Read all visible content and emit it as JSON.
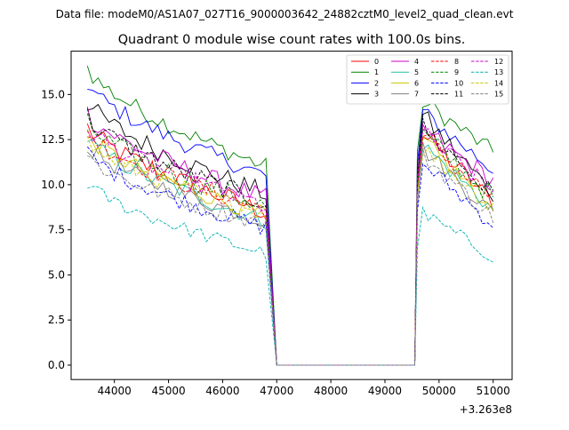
{
  "chart_data": {
    "type": "line",
    "suptitle": "Data file: modeM0/AS1A07_027T16_9000003642_24882cztM0_level2_quad_clean.evt",
    "title": "Quadrant 0 module wise count rates with 100.0s bins.",
    "xlabel": "",
    "ylabel": "",
    "x_offset_label": "+3.263e8",
    "xlim": [
      43200,
      51350
    ],
    "ylim": [
      -0.8,
      17.4
    ],
    "xticks": [
      44000,
      45000,
      46000,
      47000,
      48000,
      49000,
      50000,
      51000
    ],
    "yticks": [
      0.0,
      2.5,
      5.0,
      7.5,
      10.0,
      12.5,
      15.0
    ],
    "ytick_labels": [
      "0.0",
      "2.5",
      "5.0",
      "7.5",
      "10.0",
      "12.5",
      "15.0"
    ],
    "legend_position": "top-right",
    "gap": {
      "start": 47000,
      "end": 49550
    },
    "segment1": {
      "start": 43500,
      "end": 46800
    },
    "segment2": {
      "start": 49700,
      "end": 51000
    },
    "series": [
      {
        "name": "0",
        "color": "#ff0000",
        "dash": "solid",
        "start1": 13.2,
        "end1": 8.5,
        "start2": 12.8,
        "end2": 9.0,
        "noise": 0.6
      },
      {
        "name": "1",
        "color": "#008000",
        "dash": "solid",
        "start1": 16.5,
        "end1": 11.0,
        "start2": 14.6,
        "end2": 11.8,
        "noise": 0.5
      },
      {
        "name": "2",
        "color": "#0000ff",
        "dash": "solid",
        "start1": 15.6,
        "end1": 10.5,
        "start2": 14.0,
        "end2": 10.8,
        "noise": 0.5
      },
      {
        "name": "3",
        "color": "#000000",
        "dash": "solid",
        "start1": 14.6,
        "end1": 9.5,
        "start2": 13.8,
        "end2": 9.5,
        "noise": 0.6
      },
      {
        "name": "4",
        "color": "#cc00cc",
        "dash": "solid",
        "start1": 14.0,
        "end1": 9.2,
        "start2": 13.0,
        "end2": 10.2,
        "noise": 0.6
      },
      {
        "name": "5",
        "color": "#20c0a0",
        "dash": "solid",
        "start1": 12.6,
        "end1": 8.0,
        "start2": 12.2,
        "end2": 8.6,
        "noise": 0.5
      },
      {
        "name": "6",
        "color": "#c8c800",
        "dash": "solid",
        "start1": 12.8,
        "end1": 8.3,
        "start2": 12.4,
        "end2": 8.8,
        "noise": 0.5
      },
      {
        "name": "7",
        "color": "#808080",
        "dash": "solid",
        "start1": 12.2,
        "end1": 8.0,
        "start2": 12.0,
        "end2": 8.4,
        "noise": 0.5
      },
      {
        "name": "8",
        "color": "#ff0000",
        "dash": "dashed",
        "start1": 13.0,
        "end1": 8.6,
        "start2": 12.6,
        "end2": 9.2,
        "noise": 0.6
      },
      {
        "name": "9",
        "color": "#008000",
        "dash": "dashed",
        "start1": 13.4,
        "end1": 8.8,
        "start2": 12.8,
        "end2": 9.3,
        "noise": 0.6
      },
      {
        "name": "10",
        "color": "#0000ff",
        "dash": "dashed",
        "start1": 11.8,
        "end1": 7.6,
        "start2": 11.2,
        "end2": 7.8,
        "noise": 0.5
      },
      {
        "name": "11",
        "color": "#000000",
        "dash": "dashed",
        "start1": 13.8,
        "end1": 9.0,
        "start2": 13.2,
        "end2": 9.4,
        "noise": 0.6
      },
      {
        "name": "12",
        "color": "#cc00cc",
        "dash": "dashed",
        "start1": 13.2,
        "end1": 8.8,
        "start2": 12.8,
        "end2": 9.6,
        "noise": 0.6
      },
      {
        "name": "13",
        "color": "#00b0b0",
        "dash": "dashed",
        "start1": 10.1,
        "end1": 6.2,
        "start2": 8.4,
        "end2": 6.0,
        "noise": 0.4
      },
      {
        "name": "14",
        "color": "#c8c800",
        "dash": "dashed",
        "start1": 12.4,
        "end1": 8.4,
        "start2": 12.0,
        "end2": 8.8,
        "noise": 0.5
      },
      {
        "name": "15",
        "color": "#808080",
        "dash": "dashed",
        "start1": 11.6,
        "end1": 7.8,
        "start2": 11.6,
        "end2": 8.2,
        "noise": 0.5
      }
    ]
  }
}
